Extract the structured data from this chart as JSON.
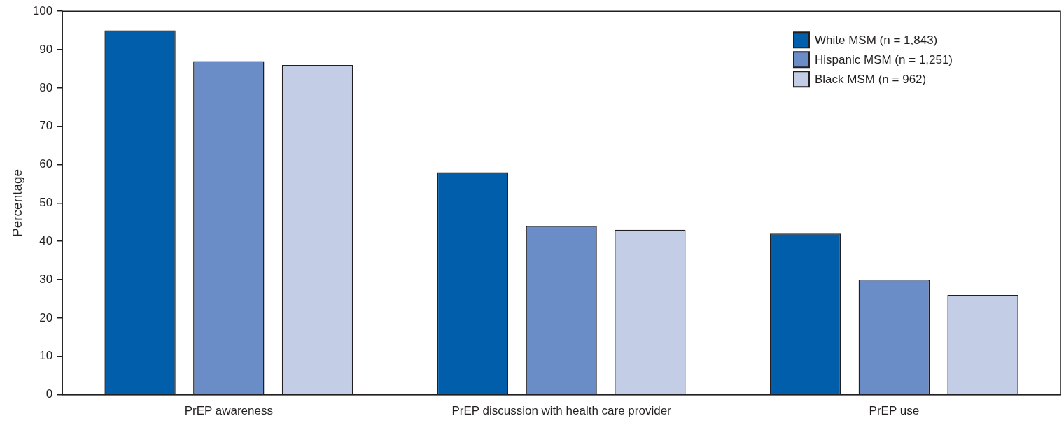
{
  "chart_data": {
    "type": "bar",
    "ylabel": "Percentage",
    "categories": [
      "PrEP awareness",
      "PrEP discussion with health care provider",
      "PrEP use"
    ],
    "series": [
      {
        "name": "White MSM (n = 1,843)",
        "color": "#005eaa",
        "values": [
          95,
          58,
          42
        ]
      },
      {
        "name": "Hispanic MSM (n = 1,251)",
        "color": "#6a8cc7",
        "values": [
          87,
          44,
          30
        ]
      },
      {
        "name": "Black MSM (n = 962)",
        "color": "#c3cde6",
        "values": [
          86,
          43,
          26
        ]
      }
    ],
    "ylim": [
      0,
      100
    ],
    "yticks": [
      0,
      10,
      20,
      30,
      40,
      50,
      60,
      70,
      80,
      90,
      100
    ],
    "grid": false,
    "legend": "top right"
  }
}
